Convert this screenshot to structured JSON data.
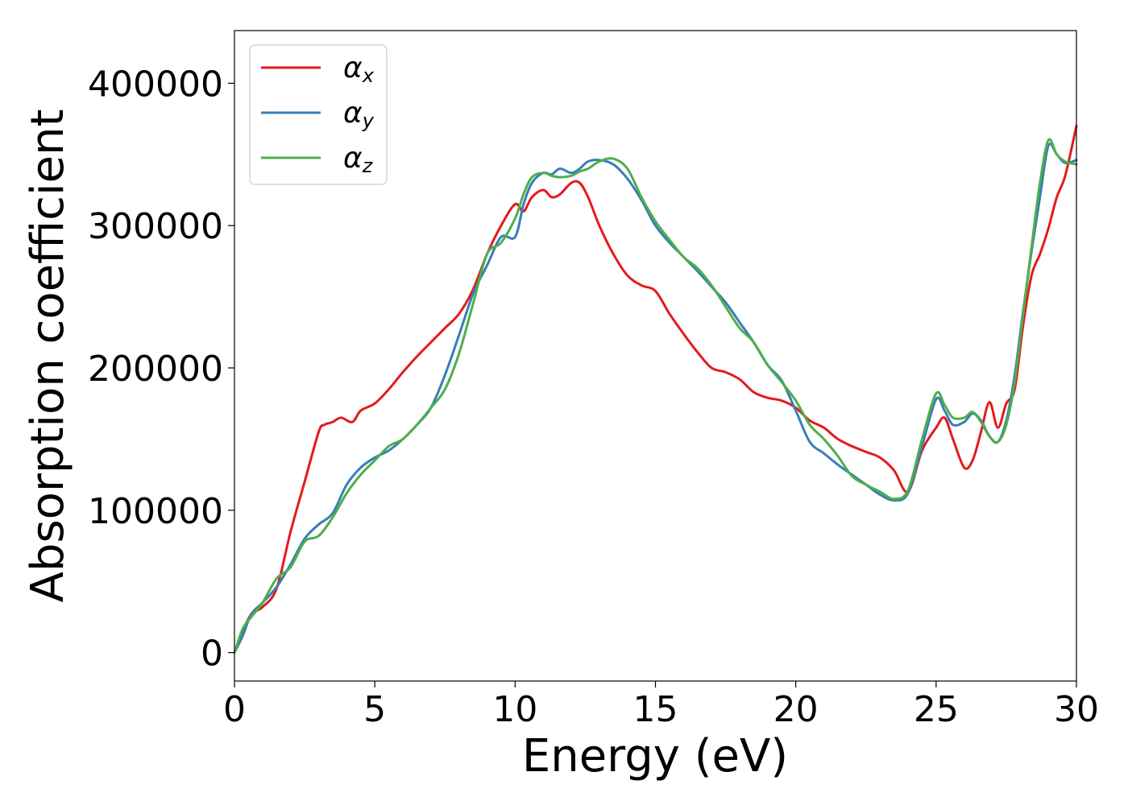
{
  "chart_data": {
    "type": "line",
    "xlabel": "Energy (eV)",
    "ylabel": "Absorption coefficient",
    "xlim": [
      0,
      30
    ],
    "ylim": [
      -20000,
      437000
    ],
    "xticks": [
      0,
      5,
      10,
      15,
      20,
      25,
      30
    ],
    "yticks": [
      0,
      100000,
      200000,
      300000,
      400000
    ],
    "grid": false,
    "legend_position": "upper-left",
    "series": [
      {
        "name": "αx",
        "symbol": "α",
        "subscript": "x",
        "color": "#e41a1c",
        "x": [
          0,
          0.3,
          0.6,
          1.0,
          1.5,
          2.0,
          2.5,
          3.0,
          3.2,
          3.5,
          3.8,
          4.2,
          4.5,
          5.0,
          5.5,
          6.0,
          6.5,
          7.0,
          7.5,
          8.0,
          8.5,
          9.0,
          9.5,
          10.0,
          10.3,
          10.6,
          11.0,
          11.3,
          11.6,
          12.0,
          12.3,
          12.6,
          13.0,
          13.5,
          14.0,
          14.5,
          15.0,
          15.5,
          16.0,
          16.5,
          17.0,
          17.5,
          18.0,
          18.5,
          19.0,
          19.5,
          20.0,
          20.5,
          21.0,
          21.5,
          22.0,
          22.5,
          23.0,
          23.5,
          24.0,
          24.5,
          25.0,
          25.3,
          25.6,
          26.0,
          26.3,
          26.6,
          26.9,
          27.2,
          27.5,
          27.8,
          28.1,
          28.4,
          28.7,
          29.0,
          29.3,
          29.6,
          30.0
        ],
        "y": [
          0,
          15000,
          27000,
          32000,
          45000,
          85000,
          120000,
          155000,
          160000,
          162000,
          165000,
          162000,
          170000,
          175000,
          185000,
          197000,
          208000,
          218000,
          228000,
          238000,
          255000,
          280000,
          300000,
          315000,
          310000,
          320000,
          325000,
          320000,
          322000,
          330000,
          330000,
          320000,
          300000,
          280000,
          265000,
          258000,
          254000,
          238000,
          224000,
          211000,
          200000,
          197000,
          192000,
          183000,
          179000,
          177000,
          172000,
          163000,
          158000,
          150000,
          145000,
          141000,
          137000,
          128000,
          113000,
          142000,
          158000,
          165000,
          150000,
          130000,
          135000,
          155000,
          176000,
          158000,
          175000,
          185000,
          230000,
          265000,
          280000,
          298000,
          320000,
          335000,
          370000
        ]
      },
      {
        "name": "αy",
        "symbol": "α",
        "subscript": "y",
        "color": "#377eb8",
        "x": [
          0,
          0.3,
          0.6,
          1.0,
          1.5,
          2.0,
          2.5,
          3.0,
          3.5,
          4.0,
          4.5,
          5.0,
          5.5,
          6.0,
          6.5,
          7.0,
          7.5,
          8.0,
          8.5,
          9.0,
          9.5,
          10.0,
          10.3,
          10.6,
          11.0,
          11.3,
          11.6,
          12.0,
          12.3,
          12.6,
          13.0,
          13.5,
          14.0,
          14.5,
          15.0,
          15.5,
          16.0,
          16.5,
          17.0,
          17.5,
          18.0,
          18.5,
          19.0,
          19.5,
          20.0,
          20.5,
          21.0,
          21.5,
          22.0,
          22.5,
          23.0,
          23.5,
          24.0,
          24.5,
          25.0,
          25.3,
          25.6,
          26.0,
          26.3,
          26.6,
          26.9,
          27.2,
          27.5,
          27.8,
          28.1,
          28.4,
          28.7,
          29.0,
          29.3,
          29.6,
          30.0
        ],
        "y": [
          0,
          12000,
          27000,
          35000,
          46000,
          62000,
          80000,
          90000,
          98000,
          118000,
          130000,
          137000,
          142000,
          150000,
          160000,
          172000,
          195000,
          223000,
          252000,
          272000,
          292000,
          292000,
          315000,
          330000,
          337000,
          336000,
          340000,
          337000,
          340000,
          345000,
          346000,
          343000,
          333000,
          318000,
          300000,
          288000,
          278000,
          268000,
          257000,
          246000,
          232000,
          218000,
          202000,
          191000,
          170000,
          148000,
          140000,
          132000,
          125000,
          118000,
          111000,
          107000,
          112000,
          145000,
          178000,
          170000,
          160000,
          162000,
          168000,
          163000,
          152000,
          148000,
          163000,
          195000,
          240000,
          282000,
          320000,
          356000,
          350000,
          344000,
          346000
        ]
      },
      {
        "name": "αz",
        "symbol": "α",
        "subscript": "z",
        "color": "#4daf4a",
        "x": [
          0,
          0.3,
          0.6,
          1.0,
          1.5,
          2.0,
          2.5,
          3.0,
          3.5,
          4.0,
          4.5,
          5.0,
          5.5,
          6.0,
          6.5,
          7.0,
          7.5,
          8.0,
          8.5,
          9.0,
          9.5,
          10.0,
          10.3,
          10.6,
          11.0,
          11.3,
          11.6,
          12.0,
          12.3,
          12.6,
          13.0,
          13.5,
          14.0,
          14.5,
          15.0,
          15.5,
          16.0,
          16.5,
          17.0,
          17.5,
          18.0,
          18.5,
          19.0,
          19.5,
          20.0,
          20.5,
          21.0,
          21.5,
          22.0,
          22.5,
          23.0,
          23.5,
          24.0,
          24.5,
          25.0,
          25.3,
          25.6,
          26.0,
          26.3,
          26.6,
          26.9,
          27.2,
          27.5,
          27.8,
          28.1,
          28.4,
          28.7,
          29.0,
          29.3,
          29.6,
          30.0
        ],
        "y": [
          0,
          17000,
          25000,
          35000,
          52000,
          60000,
          78000,
          82000,
          95000,
          112000,
          125000,
          135000,
          145000,
          150000,
          160000,
          172000,
          185000,
          210000,
          245000,
          280000,
          288000,
          305000,
          322000,
          334000,
          337000,
          335000,
          334000,
          335000,
          338000,
          340000,
          345000,
          347000,
          340000,
          320000,
          303000,
          290000,
          278000,
          270000,
          258000,
          243000,
          228000,
          218000,
          202000,
          190000,
          177000,
          160000,
          150000,
          138000,
          124000,
          118000,
          113000,
          108000,
          114000,
          150000,
          182000,
          174000,
          165000,
          165000,
          169000,
          162000,
          152000,
          148000,
          160000,
          190000,
          238000,
          285000,
          330000,
          360000,
          350000,
          345000,
          343000
        ]
      }
    ]
  }
}
